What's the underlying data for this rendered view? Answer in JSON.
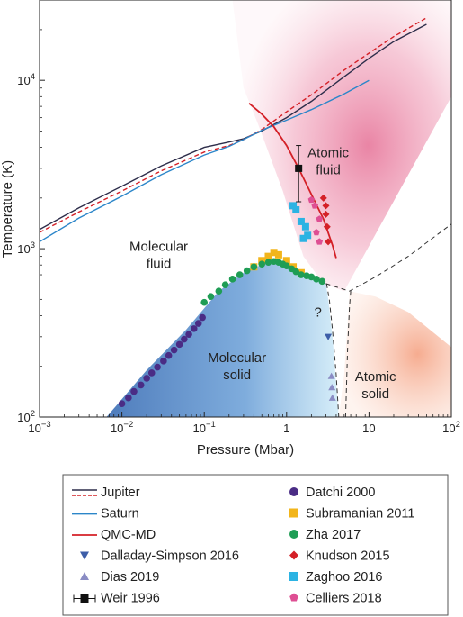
{
  "chart_data": {
    "type": "scatter",
    "title": "",
    "xlabel": "Pressure (Mbar)",
    "ylabel": "Temperature (K)",
    "x_scale": "log",
    "y_scale": "log",
    "xlim": [
      0.001,
      100
    ],
    "ylim": [
      100,
      30000
    ],
    "x_ticks": [
      {
        "v": 0.001,
        "base": "10",
        "exp": "−3"
      },
      {
        "v": 0.01,
        "base": "10",
        "exp": "−2"
      },
      {
        "v": 0.1,
        "base": "10",
        "exp": "−1"
      },
      {
        "v": 1,
        "base": "1",
        "exp": ""
      },
      {
        "v": 10,
        "base": "10",
        "exp": ""
      },
      {
        "v": 100,
        "base": "10",
        "exp": "2"
      }
    ],
    "y_ticks": [
      {
        "v": 100,
        "base": "10",
        "exp": "2"
      },
      {
        "v": 1000,
        "base": "10",
        "exp": "3"
      },
      {
        "v": 10000,
        "base": "10",
        "exp": "4"
      }
    ],
    "region_labels": [
      {
        "lines": [
          "Atomic",
          "fluid"
        ],
        "x": 3.2,
        "y": 3300
      },
      {
        "lines": [
          "Molecular",
          "fluid"
        ],
        "x": 0.028,
        "y": 920
      },
      {
        "lines": [
          "Molecular",
          "solid"
        ],
        "x": 0.25,
        "y": 200
      },
      {
        "lines": [
          "Atomic",
          "solid"
        ],
        "x": 12,
        "y": 155
      },
      {
        "lines": [
          "?"
        ],
        "x": 2.4,
        "y": 420
      }
    ],
    "series": [
      {
        "name": "Jupiter",
        "kind": "line",
        "color": "#2d2d4a",
        "dash": "",
        "x": [
          0.001,
          0.003,
          0.01,
          0.03,
          0.1,
          0.2,
          0.3,
          0.5,
          1,
          2,
          5,
          10,
          20,
          50
        ],
        "y": [
          1300,
          1750,
          2350,
          3100,
          4000,
          4300,
          4500,
          5000,
          6000,
          7500,
          10500,
          13500,
          17000,
          21500
        ]
      },
      {
        "name": "Jupiter",
        "kind": "line",
        "color": "#d42027",
        "dash": "5,3",
        "x": [
          0.001,
          0.003,
          0.01,
          0.03,
          0.1,
          0.2,
          0.3,
          0.5,
          1,
          2,
          5,
          10,
          20,
          50
        ],
        "y": [
          1250,
          1650,
          2200,
          2900,
          3750,
          4100,
          4450,
          5100,
          6500,
          8200,
          11500,
          14500,
          18200,
          23500
        ]
      },
      {
        "name": "Saturn",
        "kind": "line",
        "color": "#2c86c9",
        "dash": "",
        "x": [
          0.001,
          0.003,
          0.01,
          0.03,
          0.1,
          0.2,
          0.3,
          0.5,
          1,
          2,
          5,
          10
        ],
        "y": [
          1100,
          1520,
          2050,
          2750,
          3600,
          4050,
          4450,
          5050,
          5800,
          6700,
          8300,
          10000
        ]
      },
      {
        "name": "QMC-MD",
        "kind": "line",
        "color": "#d42027",
        "dash": "",
        "x": [
          0.35,
          0.5,
          0.7,
          1.0,
          1.4,
          2.0,
          2.8,
          3.6,
          4.0
        ],
        "y": [
          7300,
          6300,
          5300,
          4100,
          3000,
          2100,
          1500,
          1050,
          880
        ]
      },
      {
        "name": "Datchi 2000",
        "kind": "points",
        "marker": "circle",
        "color": "#4a2c85",
        "x": [
          0.01,
          0.012,
          0.014,
          0.017,
          0.02,
          0.023,
          0.027,
          0.032,
          0.037,
          0.043,
          0.05,
          0.057,
          0.065,
          0.075,
          0.085,
          0.095
        ],
        "y": [
          120,
          130,
          142,
          155,
          170,
          183,
          198,
          215,
          232,
          250,
          270,
          290,
          310,
          335,
          360,
          390
        ]
      },
      {
        "name": "Subramanian 2011",
        "kind": "points",
        "marker": "square",
        "color": "#f2b51b",
        "x": [
          0.4,
          0.5,
          0.6,
          0.7,
          0.8,
          1.0,
          1.2,
          1.5
        ],
        "y": [
          780,
          850,
          900,
          950,
          920,
          850,
          780,
          720
        ]
      },
      {
        "name": "Zha 2017",
        "kind": "points",
        "marker": "circle",
        "color": "#1f9d55",
        "x": [
          0.1,
          0.12,
          0.15,
          0.18,
          0.22,
          0.27,
          0.33,
          0.4,
          0.5,
          0.6,
          0.7,
          0.8,
          0.9,
          1.0,
          1.15,
          1.3,
          1.5,
          1.75,
          2.0,
          2.3,
          2.7
        ],
        "y": [
          480,
          520,
          560,
          610,
          660,
          700,
          740,
          780,
          810,
          830,
          840,
          830,
          810,
          790,
          760,
          730,
          700,
          690,
          680,
          660,
          640
        ]
      },
      {
        "name": "Knudson 2015",
        "kind": "points",
        "marker": "diamond",
        "color": "#d42027",
        "x": [
          2.8,
          3.0,
          3.1,
          3.2,
          3.0
        ],
        "y": [
          2000,
          1600,
          1350,
          1100,
          1800
        ]
      },
      {
        "name": "Zaghoo 2016",
        "kind": "points",
        "marker": "square",
        "color": "#2cb3e3",
        "x": [
          1.2,
          1.3,
          1.5,
          1.7,
          1.6,
          1.8
        ],
        "y": [
          1800,
          1700,
          1450,
          1350,
          1150,
          1200
        ]
      },
      {
        "name": "Celliers 2018",
        "kind": "points",
        "marker": "pentagon",
        "color": "#de4f93",
        "x": [
          2.0,
          2.2,
          2.5,
          2.3,
          2.5
        ],
        "y": [
          1950,
          1800,
          1500,
          1250,
          1100
        ]
      },
      {
        "name": "Dalladay-Simpson 2016",
        "kind": "points",
        "marker": "triangle-down",
        "color": "#3d5ea8",
        "x": [
          3.2
        ],
        "y": [
          300
        ]
      },
      {
        "name": "Dias 2019",
        "kind": "points",
        "marker": "triangle-up",
        "color": "#8a8cc4",
        "x": [
          3.5,
          3.55,
          3.6
        ],
        "y": [
          175,
          150,
          130
        ]
      },
      {
        "name": "Weir 1996",
        "kind": "points",
        "marker": "square-errorbar",
        "color": "#111111",
        "x": [
          1.4
        ],
        "y": [
          3000
        ],
        "y_err": [
          [
            1900,
            4100
          ]
        ]
      }
    ]
  },
  "legend": {
    "left": [
      {
        "label": "Jupiter",
        "kind": "jupiter"
      },
      {
        "label": "Saturn",
        "kind": "line",
        "color": "#2c86c9"
      },
      {
        "label": "QMC-MD",
        "kind": "line",
        "color": "#d42027"
      },
      {
        "label": "Dalladay-Simpson 2016",
        "kind": "triangle-down",
        "color": "#3d5ea8"
      },
      {
        "label": "Dias 2019",
        "kind": "triangle-up",
        "color": "#8a8cc4"
      },
      {
        "label": "Weir 1996",
        "kind": "square-errorbar",
        "color": "#111111"
      }
    ],
    "right": [
      {
        "label": "Datchi 2000",
        "kind": "circle",
        "color": "#4a2c85"
      },
      {
        "label": "Subramanian 2011",
        "kind": "square",
        "color": "#f2b51b"
      },
      {
        "label": "Zha 2017",
        "kind": "circle",
        "color": "#1f9d55"
      },
      {
        "label": "Knudson 2015",
        "kind": "diamond",
        "color": "#d42027"
      },
      {
        "label": "Zaghoo 2016",
        "kind": "square",
        "color": "#2cb3e3"
      },
      {
        "label": "Celliers 2018",
        "kind": "pentagon",
        "color": "#de4f93"
      }
    ]
  }
}
